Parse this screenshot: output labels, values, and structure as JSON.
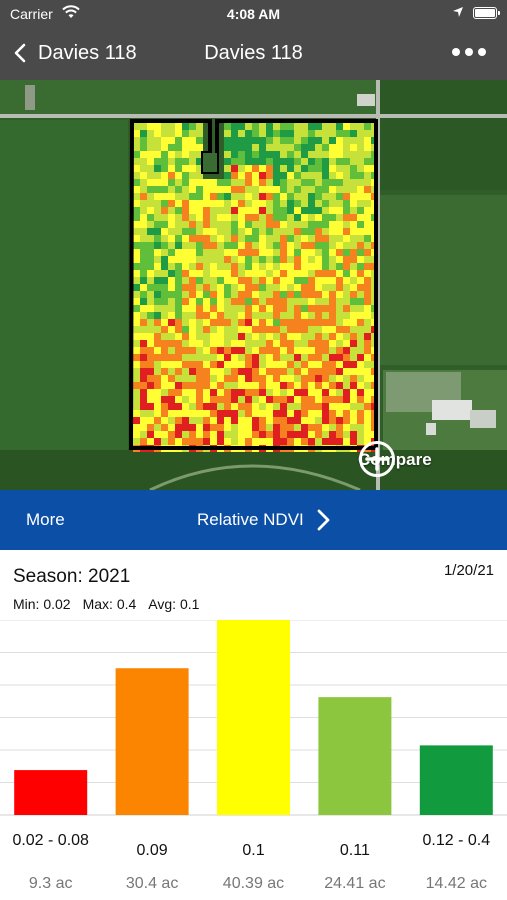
{
  "status_bar": {
    "carrier": "Carrier",
    "time": "4:08 AM"
  },
  "nav": {
    "back_label": "Davies 118",
    "title": "Davies 118"
  },
  "map": {
    "compare_label": "Compare"
  },
  "layer_bar": {
    "more_label": "More",
    "layer_label": "Relative NDVI"
  },
  "stats": {
    "season": "Season: 2021",
    "date": "1/20/21",
    "min": "Min: 0.02",
    "max": "Max: 0.4",
    "avg": "Avg: 0.1"
  },
  "colors": {
    "nav_bg": "#4a4a4a",
    "layer_bar_bg": "#0b4fa6"
  },
  "chart_data": {
    "type": "bar",
    "categories": [
      "0.02 - 0.08",
      "0.09",
      "0.1",
      "0.11",
      "0.12 - 0.4"
    ],
    "values": [
      9.3,
      30.4,
      40.39,
      24.41,
      14.42
    ],
    "value_labels": [
      "9.3 ac",
      "30.4 ac",
      "40.39 ac",
      "24.41 ac",
      "14.42 ac"
    ],
    "colors": [
      "#ff0000",
      "#fb8500",
      "#ffff00",
      "#8cc63f",
      "#119a3e"
    ],
    "units": "ac",
    "ylim": [
      0,
      40.39
    ],
    "grid": true
  }
}
